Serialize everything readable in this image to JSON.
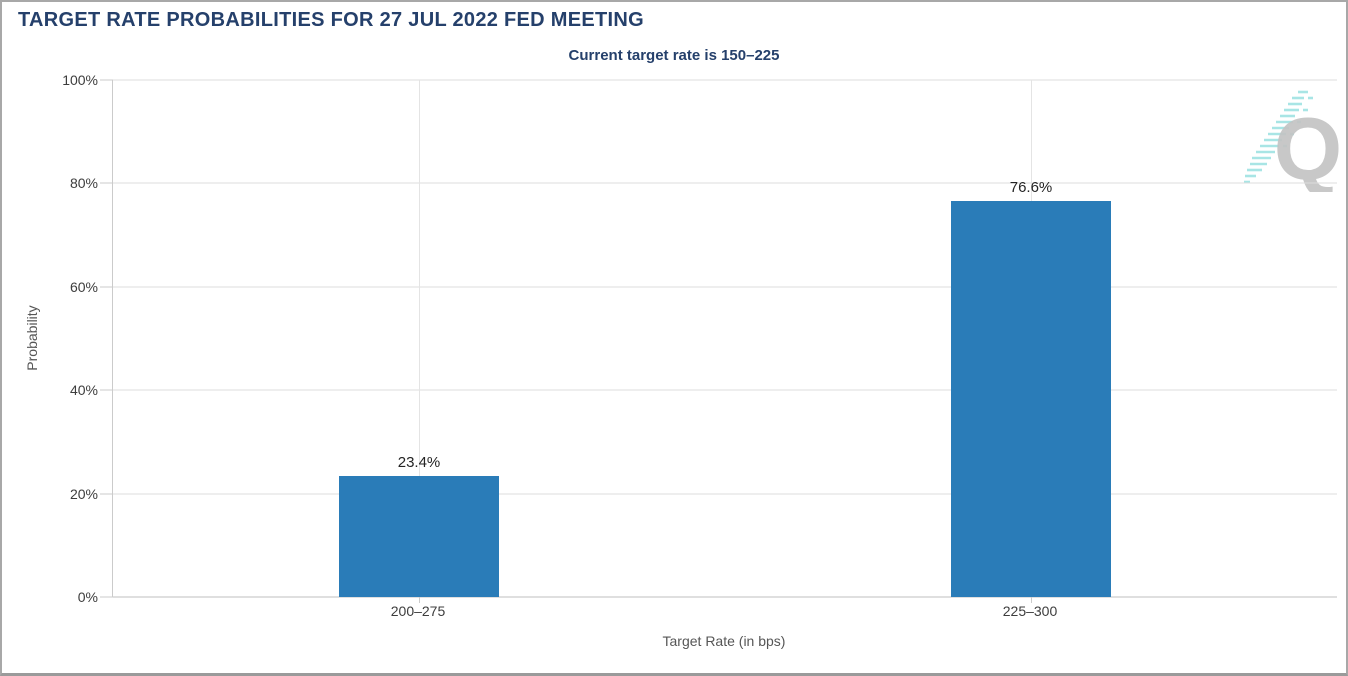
{
  "chart_data": {
    "type": "bar",
    "title": "TARGET RATE PROBABILITIES FOR 27 JUL 2022 FED MEETING",
    "subtitle": "Current target rate is 150–225",
    "categories": [
      "200–275",
      "225–300"
    ],
    "values": [
      23.4,
      76.6
    ],
    "value_labels": [
      "23.4%",
      "76.6%"
    ],
    "xlabel": "Target Rate (in bps)",
    "ylabel": "Probability",
    "ylim": [
      0,
      100
    ],
    "yticks": [
      0,
      20,
      40,
      60,
      80,
      100
    ],
    "ytick_labels": [
      "0%",
      "20%",
      "40%",
      "60%",
      "80%",
      "100%"
    ],
    "grid": "horizontal gridlines + vertical gridline at each category center",
    "legend": "none",
    "bar_color": "#2A7CB8"
  },
  "logo": {
    "letter": "Q",
    "letter_color": "#C4C4C4",
    "stripe_color": "#9FE3E3"
  },
  "colors": {
    "title_text": "#25406B",
    "tick_text": "#3D3D3D",
    "axis_title_text": "#565656",
    "gridline": "#DDDDDD",
    "axis_line": "#BFBFBF",
    "frame_border": "#A8A8A8"
  }
}
